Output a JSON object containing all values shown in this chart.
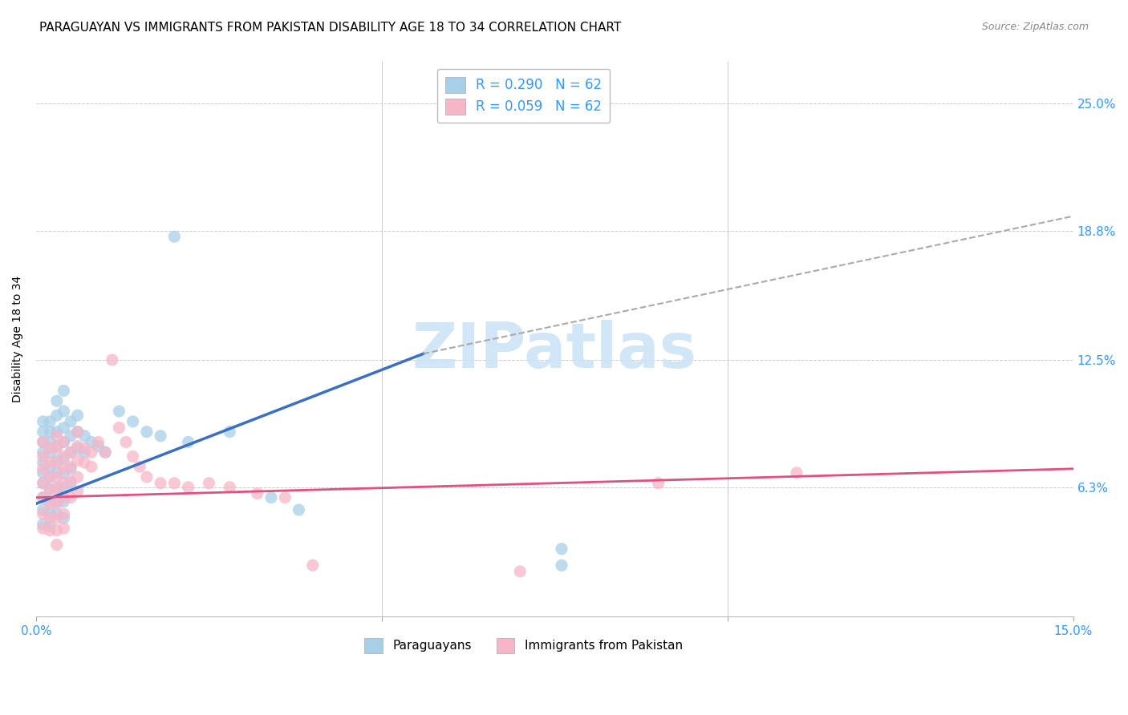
{
  "title": "PARAGUAYAN VS IMMIGRANTS FROM PAKISTAN DISABILITY AGE 18 TO 34 CORRELATION CHART",
  "source": "Source: ZipAtlas.com",
  "ylabel_label": "Disability Age 18 to 34",
  "xlim": [
    0.0,
    0.15
  ],
  "ylim": [
    0.0,
    0.27
  ],
  "ytick_vals": [
    0.063,
    0.125,
    0.188,
    0.25
  ],
  "ytick_labels": [
    "6.3%",
    "12.5%",
    "18.8%",
    "25.0%"
  ],
  "xtick_vals": [
    0.0,
    0.05,
    0.1,
    0.15
  ],
  "xtick_labels": [
    "0.0%",
    "",
    "",
    "15.0%"
  ],
  "legend_top": [
    {
      "label": "R = 0.290   N = 62",
      "color": "#a8cfe8"
    },
    {
      "label": "R = 0.059   N = 62",
      "color": "#f7b6c8"
    }
  ],
  "legend_bottom": [
    {
      "label": "Paraguayans",
      "color": "#a8cfe8"
    },
    {
      "label": "Immigrants from Pakistan",
      "color": "#f7b6c8"
    }
  ],
  "blue_color": "#a8cfe8",
  "pink_color": "#f7b6c8",
  "blue_line_color": "#3a6fc4",
  "pink_line_color": "#e05080",
  "dashed_line_color": "#aaaaaa",
  "watermark_text": "ZIPatlas",
  "watermark_color": "#cce4f5",
  "blue_line_x": [
    0.0,
    0.056
  ],
  "blue_line_y": [
    0.055,
    0.128
  ],
  "pink_line_x": [
    0.0,
    0.15
  ],
  "pink_line_y": [
    0.058,
    0.072
  ],
  "dashed_line_x": [
    0.056,
    0.15
  ],
  "dashed_line_y": [
    0.128,
    0.195
  ],
  "blue_scatter": [
    [
      0.001,
      0.095
    ],
    [
      0.001,
      0.09
    ],
    [
      0.001,
      0.085
    ],
    [
      0.001,
      0.08
    ],
    [
      0.001,
      0.075
    ],
    [
      0.001,
      0.07
    ],
    [
      0.001,
      0.065
    ],
    [
      0.001,
      0.058
    ],
    [
      0.001,
      0.052
    ],
    [
      0.001,
      0.045
    ],
    [
      0.002,
      0.095
    ],
    [
      0.002,
      0.09
    ],
    [
      0.002,
      0.085
    ],
    [
      0.002,
      0.08
    ],
    [
      0.002,
      0.073
    ],
    [
      0.002,
      0.068
    ],
    [
      0.002,
      0.062
    ],
    [
      0.002,
      0.056
    ],
    [
      0.002,
      0.05
    ],
    [
      0.002,
      0.044
    ],
    [
      0.003,
      0.105
    ],
    [
      0.003,
      0.098
    ],
    [
      0.003,
      0.09
    ],
    [
      0.003,
      0.083
    ],
    [
      0.003,
      0.076
    ],
    [
      0.003,
      0.07
    ],
    [
      0.003,
      0.063
    ],
    [
      0.003,
      0.056
    ],
    [
      0.003,
      0.05
    ],
    [
      0.004,
      0.11
    ],
    [
      0.004,
      0.1
    ],
    [
      0.004,
      0.092
    ],
    [
      0.004,
      0.085
    ],
    [
      0.004,
      0.077
    ],
    [
      0.004,
      0.07
    ],
    [
      0.004,
      0.063
    ],
    [
      0.004,
      0.056
    ],
    [
      0.004,
      0.048
    ],
    [
      0.005,
      0.095
    ],
    [
      0.005,
      0.088
    ],
    [
      0.005,
      0.08
    ],
    [
      0.005,
      0.072
    ],
    [
      0.005,
      0.065
    ],
    [
      0.006,
      0.098
    ],
    [
      0.006,
      0.09
    ],
    [
      0.006,
      0.082
    ],
    [
      0.007,
      0.088
    ],
    [
      0.007,
      0.08
    ],
    [
      0.008,
      0.085
    ],
    [
      0.009,
      0.083
    ],
    [
      0.01,
      0.08
    ],
    [
      0.012,
      0.1
    ],
    [
      0.014,
      0.095
    ],
    [
      0.016,
      0.09
    ],
    [
      0.018,
      0.088
    ],
    [
      0.02,
      0.185
    ],
    [
      0.022,
      0.085
    ],
    [
      0.028,
      0.09
    ],
    [
      0.034,
      0.058
    ],
    [
      0.038,
      0.052
    ],
    [
      0.076,
      0.033
    ],
    [
      0.076,
      0.025
    ]
  ],
  "pink_scatter": [
    [
      0.001,
      0.085
    ],
    [
      0.001,
      0.078
    ],
    [
      0.001,
      0.072
    ],
    [
      0.001,
      0.065
    ],
    [
      0.001,
      0.058
    ],
    [
      0.001,
      0.05
    ],
    [
      0.001,
      0.043
    ],
    [
      0.002,
      0.082
    ],
    [
      0.002,
      0.075
    ],
    [
      0.002,
      0.068
    ],
    [
      0.002,
      0.062
    ],
    [
      0.002,
      0.055
    ],
    [
      0.002,
      0.048
    ],
    [
      0.002,
      0.042
    ],
    [
      0.003,
      0.088
    ],
    [
      0.003,
      0.082
    ],
    [
      0.003,
      0.075
    ],
    [
      0.003,
      0.068
    ],
    [
      0.003,
      0.062
    ],
    [
      0.003,
      0.055
    ],
    [
      0.003,
      0.048
    ],
    [
      0.003,
      0.042
    ],
    [
      0.003,
      0.035
    ],
    [
      0.004,
      0.085
    ],
    [
      0.004,
      0.078
    ],
    [
      0.004,
      0.072
    ],
    [
      0.004,
      0.065
    ],
    [
      0.004,
      0.058
    ],
    [
      0.004,
      0.05
    ],
    [
      0.004,
      0.043
    ],
    [
      0.005,
      0.08
    ],
    [
      0.005,
      0.073
    ],
    [
      0.005,
      0.066
    ],
    [
      0.005,
      0.058
    ],
    [
      0.006,
      0.09
    ],
    [
      0.006,
      0.083
    ],
    [
      0.006,
      0.076
    ],
    [
      0.006,
      0.068
    ],
    [
      0.006,
      0.061
    ],
    [
      0.007,
      0.082
    ],
    [
      0.007,
      0.075
    ],
    [
      0.008,
      0.08
    ],
    [
      0.008,
      0.073
    ],
    [
      0.009,
      0.085
    ],
    [
      0.01,
      0.08
    ],
    [
      0.011,
      0.125
    ],
    [
      0.012,
      0.092
    ],
    [
      0.013,
      0.085
    ],
    [
      0.014,
      0.078
    ],
    [
      0.015,
      0.073
    ],
    [
      0.016,
      0.068
    ],
    [
      0.018,
      0.065
    ],
    [
      0.02,
      0.065
    ],
    [
      0.022,
      0.063
    ],
    [
      0.025,
      0.065
    ],
    [
      0.028,
      0.063
    ],
    [
      0.032,
      0.06
    ],
    [
      0.036,
      0.058
    ],
    [
      0.04,
      0.025
    ],
    [
      0.07,
      0.022
    ],
    [
      0.09,
      0.065
    ],
    [
      0.11,
      0.07
    ]
  ],
  "title_fontsize": 11,
  "axis_label_fontsize": 10,
  "tick_fontsize": 11,
  "source_fontsize": 9,
  "legend_fontsize": 12,
  "scatter_size": 120,
  "scatter_alpha": 0.75
}
